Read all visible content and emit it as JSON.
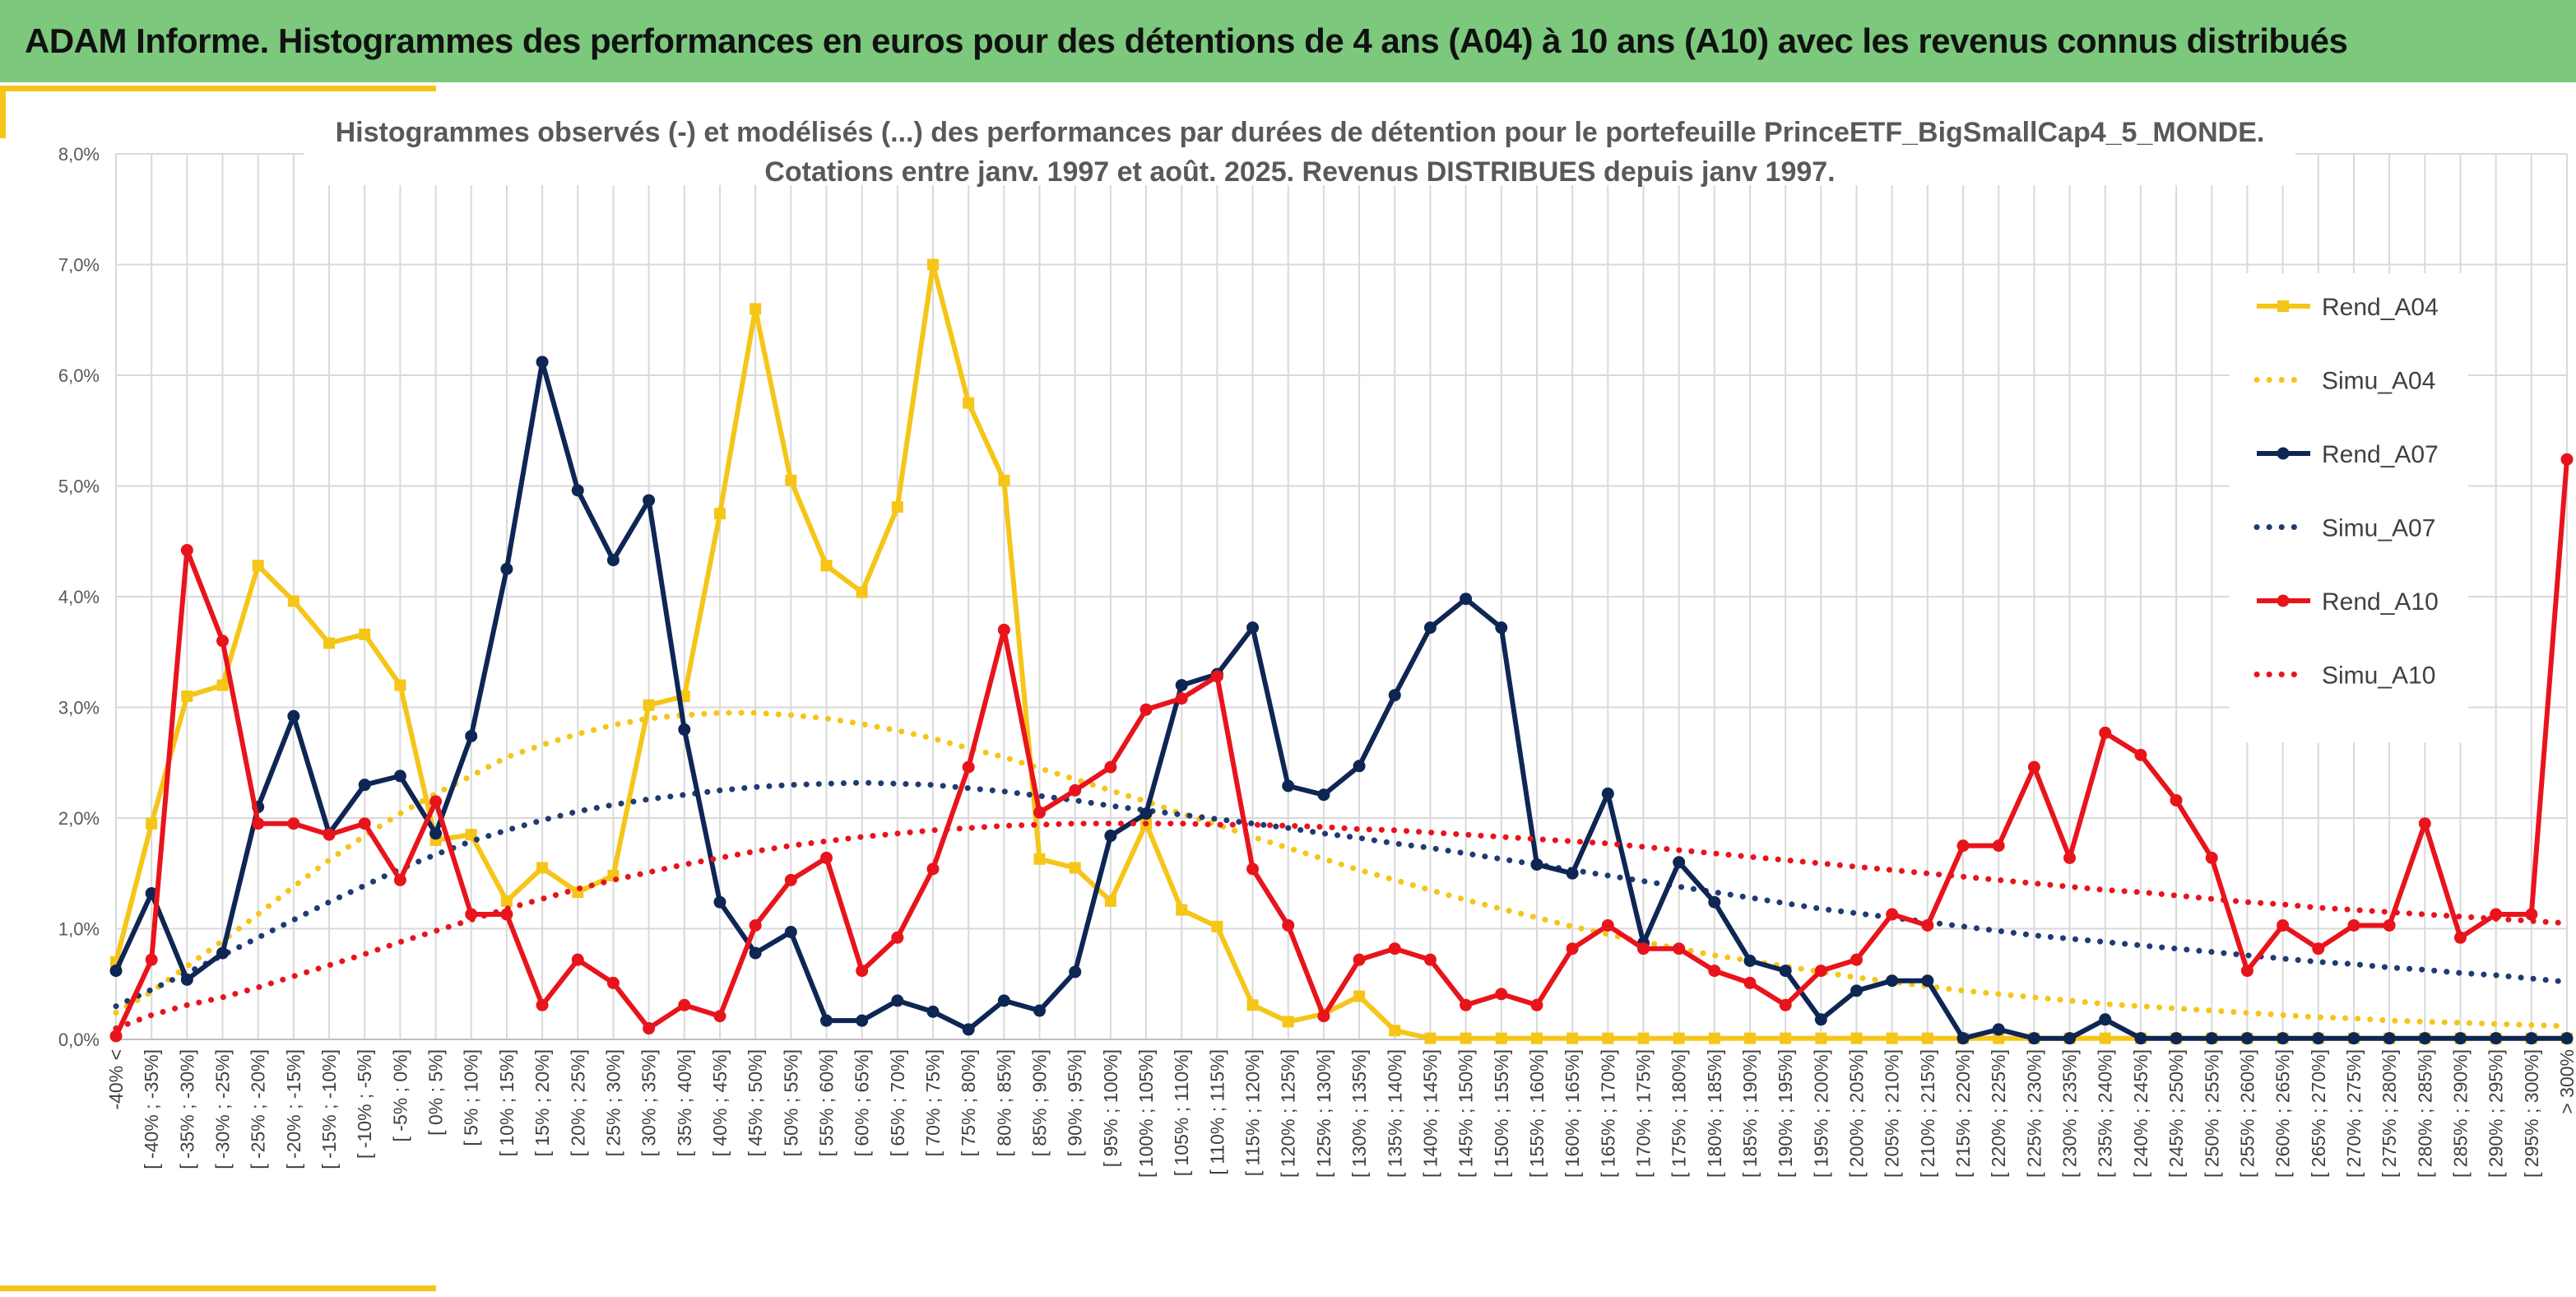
{
  "header": {
    "title": "ADAM Informe. Histogrammes des performances en euros pour des détentions de 4 ans (A04) à 10 ans (A10) avec les revenus connus distribués"
  },
  "chart_data": {
    "type": "line",
    "title": "Histogrammes observés (-) et modélisés (...) des performances par durées de détention pour le portefeuille PrinceETF_BigSmallCap4_5_MONDE.",
    "subtitle": "Cotations entre janv. 1997 et août. 2025. Revenus DISTRIBUES depuis janv 1997.",
    "ylim": [
      0,
      8
    ],
    "yticks": [
      "0,0%",
      "1,0%",
      "2,0%",
      "3,0%",
      "4,0%",
      "5,0%",
      "6,0%",
      "7,0%",
      "8,0%"
    ],
    "grid": true,
    "legend_position": "right",
    "categories": [
      "-40% <",
      "[ -40% ; -35%]",
      "[ -35% ; -30%]",
      "[ -30% ; -25%]",
      "[ -25% ; -20%]",
      "[ -20% ; -15%]",
      "[ -15% ; -10%]",
      "[ -10% ; -5%]",
      "[ -5% ; 0%]",
      "[ 0% ; 5%]",
      "[ 5% ; 10%]",
      "[ 10% ; 15%]",
      "[ 15% ; 20%]",
      "[ 20% ; 25%]",
      "[ 25% ; 30%]",
      "[ 30% ; 35%]",
      "[ 35% ; 40%]",
      "[ 40% ; 45%]",
      "[ 45% ; 50%]",
      "[ 50% ; 55%]",
      "[ 55% ; 60%]",
      "[ 60% ; 65%]",
      "[ 65% ; 70%]",
      "[ 70% ; 75%]",
      "[ 75% ; 80%]",
      "[ 80% ; 85%]",
      "[ 85% ; 90%]",
      "[ 90% ; 95%]",
      "[ 95% ; 100%]",
      "[ 100% ; 105%]",
      "[ 105% ; 110%]",
      "[ 110% ; 115%]",
      "[ 115% ; 120%]",
      "[ 120% ; 125%]",
      "[ 125% ; 130%]",
      "[ 130% ; 135%]",
      "[ 135% ; 140%]",
      "[ 140% ; 145%]",
      "[ 145% ; 150%]",
      "[ 150% ; 155%]",
      "[ 155% ; 160%]",
      "[ 160% ; 165%]",
      "[ 165% ; 170%]",
      "[ 170% ; 175%]",
      "[ 175% ; 180%]",
      "[ 180% ; 185%]",
      "[ 185% ; 190%]",
      "[ 190% ; 195%]",
      "[ 195% ; 200%]",
      "[ 200% ; 205%]",
      "[ 205% ; 210%]",
      "[ 210% ; 215%]",
      "[ 215% ; 220%]",
      "[ 220% ; 225%]",
      "[ 225% ; 230%]",
      "[ 230% ; 235%]",
      "[ 235% ; 240%]",
      "[ 240% ; 245%]",
      "[ 245% ; 250%]",
      "[ 250% ; 255%]",
      "[ 255% ; 260%]",
      "[ 260% ; 265%]",
      "[ 265% ; 270%]",
      "[ 270% ; 275%]",
      "[ 275% ; 280%]",
      "[ 280% ; 285%]",
      "[ 285% ; 290%]",
      "[ 290% ; 295%]",
      "[ 295% ; 300%]",
      "> 300%"
    ],
    "series": [
      {
        "name": "Rend_A04",
        "style": "solid",
        "marker": "square",
        "color": "#f5c518",
        "values": [
          0.7,
          1.95,
          3.1,
          3.2,
          4.28,
          3.96,
          3.58,
          3.66,
          3.2,
          1.8,
          1.85,
          1.25,
          1.55,
          1.33,
          1.48,
          3.02,
          3.1,
          4.75,
          6.6,
          5.05,
          4.28,
          4.04,
          4.81,
          7.0,
          5.75,
          5.05,
          1.63,
          1.55,
          1.25,
          1.95,
          1.17,
          1.02,
          0.31,
          0.16,
          0.23,
          0.39,
          0.08,
          0.01,
          0.01,
          0.01,
          0.01,
          0.01,
          0.01,
          0.01,
          0.01,
          0.01,
          0.01,
          0.01,
          0.01,
          0.01,
          0.01,
          0.01,
          0.01,
          0.01,
          0.01,
          0.01,
          0.01,
          0.01,
          0.01,
          0.01,
          0.01,
          0.01,
          0.01,
          0.01,
          0.01,
          0.01,
          0.01,
          0.01,
          0.01,
          0.01
        ]
      },
      {
        "name": "Simu_A04",
        "style": "dotted",
        "color": "#f5c518",
        "values": [
          0.24,
          0.43,
          0.66,
          0.89,
          1.13,
          1.38,
          1.62,
          1.84,
          2.04,
          2.22,
          2.38,
          2.55,
          2.66,
          2.76,
          2.84,
          2.9,
          2.93,
          2.95,
          2.95,
          2.93,
          2.9,
          2.85,
          2.79,
          2.72,
          2.63,
          2.55,
          2.45,
          2.35,
          2.25,
          2.15,
          2.04,
          1.94,
          1.83,
          1.73,
          1.63,
          1.53,
          1.44,
          1.35,
          1.26,
          1.18,
          1.1,
          1.02,
          0.95,
          0.88,
          0.82,
          0.76,
          0.71,
          0.66,
          0.61,
          0.56,
          0.52,
          0.48,
          0.44,
          0.41,
          0.38,
          0.35,
          0.32,
          0.3,
          0.28,
          0.26,
          0.24,
          0.22,
          0.2,
          0.19,
          0.17,
          0.16,
          0.15,
          0.14,
          0.13,
          0.12
        ]
      },
      {
        "name": "Rend_A07",
        "style": "solid",
        "marker": "circle",
        "color": "#0e2654",
        "values": [
          0.62,
          1.32,
          0.54,
          0.78,
          2.1,
          2.92,
          1.86,
          2.3,
          2.38,
          1.86,
          2.74,
          4.25,
          6.12,
          4.96,
          4.33,
          4.87,
          2.8,
          1.24,
          0.78,
          0.97,
          0.17,
          0.17,
          0.35,
          0.25,
          0.09,
          0.35,
          0.26,
          0.61,
          1.84,
          2.04,
          3.2,
          3.3,
          3.72,
          2.29,
          2.21,
          2.47,
          3.11,
          3.72,
          3.98,
          3.72,
          1.58,
          1.5,
          2.22,
          0.87,
          1.6,
          1.24,
          0.71,
          0.62,
          0.18,
          0.44,
          0.53,
          0.53,
          0.01,
          0.09,
          0.01,
          0.01,
          0.18,
          0.01,
          0.01,
          0.01,
          0.01,
          0.01,
          0.01,
          0.01,
          0.01,
          0.01,
          0.01,
          0.01,
          0.01,
          0.01
        ]
      },
      {
        "name": "Simu_A07",
        "style": "dotted",
        "color": "#1f3b73",
        "values": [
          0.3,
          0.45,
          0.6,
          0.76,
          0.92,
          1.08,
          1.24,
          1.39,
          1.54,
          1.67,
          1.79,
          1.89,
          1.98,
          2.06,
          2.12,
          2.17,
          2.21,
          2.25,
          2.28,
          2.3,
          2.31,
          2.32,
          2.31,
          2.3,
          2.27,
          2.24,
          2.2,
          2.16,
          2.11,
          2.07,
          2.03,
          1.99,
          1.95,
          1.91,
          1.86,
          1.82,
          1.77,
          1.73,
          1.68,
          1.63,
          1.58,
          1.53,
          1.48,
          1.43,
          1.38,
          1.33,
          1.28,
          1.23,
          1.18,
          1.14,
          1.1,
          1.06,
          1.02,
          0.98,
          0.94,
          0.91,
          0.88,
          0.85,
          0.82,
          0.79,
          0.76,
          0.73,
          0.7,
          0.68,
          0.65,
          0.63,
          0.6,
          0.58,
          0.55,
          0.52
        ]
      },
      {
        "name": "Rend_A10",
        "style": "solid",
        "marker": "circle",
        "color": "#e8141c",
        "values": [
          0.03,
          0.72,
          4.42,
          3.6,
          1.95,
          1.95,
          1.85,
          1.95,
          1.44,
          2.15,
          1.13,
          1.13,
          0.31,
          0.72,
          0.51,
          0.1,
          0.31,
          0.21,
          1.03,
          1.44,
          1.64,
          0.62,
          0.92,
          1.54,
          2.46,
          3.7,
          2.05,
          2.25,
          2.46,
          2.98,
          3.08,
          3.28,
          1.54,
          1.03,
          0.21,
          0.72,
          0.82,
          0.72,
          0.31,
          0.41,
          0.31,
          0.82,
          1.03,
          0.82,
          0.82,
          0.62,
          0.51,
          0.31,
          0.62,
          0.72,
          1.13,
          1.03,
          1.75,
          1.75,
          2.46,
          1.64,
          2.77,
          2.57,
          2.16,
          1.64,
          0.62,
          1.03,
          0.82,
          1.03,
          1.03,
          1.95,
          0.92,
          1.13,
          1.13,
          5.24
        ]
      },
      {
        "name": "Simu_A10",
        "style": "dotted",
        "color": "#e8141c",
        "values": [
          0.1,
          0.22,
          0.31,
          0.38,
          0.47,
          0.57,
          0.67,
          0.77,
          0.88,
          0.98,
          1.08,
          1.18,
          1.27,
          1.36,
          1.44,
          1.51,
          1.58,
          1.64,
          1.7,
          1.75,
          1.79,
          1.83,
          1.86,
          1.89,
          1.91,
          1.93,
          1.94,
          1.95,
          1.95,
          1.95,
          1.95,
          1.94,
          1.94,
          1.93,
          1.92,
          1.9,
          1.89,
          1.87,
          1.85,
          1.83,
          1.81,
          1.79,
          1.77,
          1.74,
          1.71,
          1.68,
          1.65,
          1.62,
          1.59,
          1.56,
          1.53,
          1.5,
          1.47,
          1.44,
          1.41,
          1.38,
          1.35,
          1.33,
          1.3,
          1.27,
          1.24,
          1.22,
          1.19,
          1.17,
          1.15,
          1.13,
          1.11,
          1.09,
          1.07,
          1.05
        ]
      }
    ]
  }
}
